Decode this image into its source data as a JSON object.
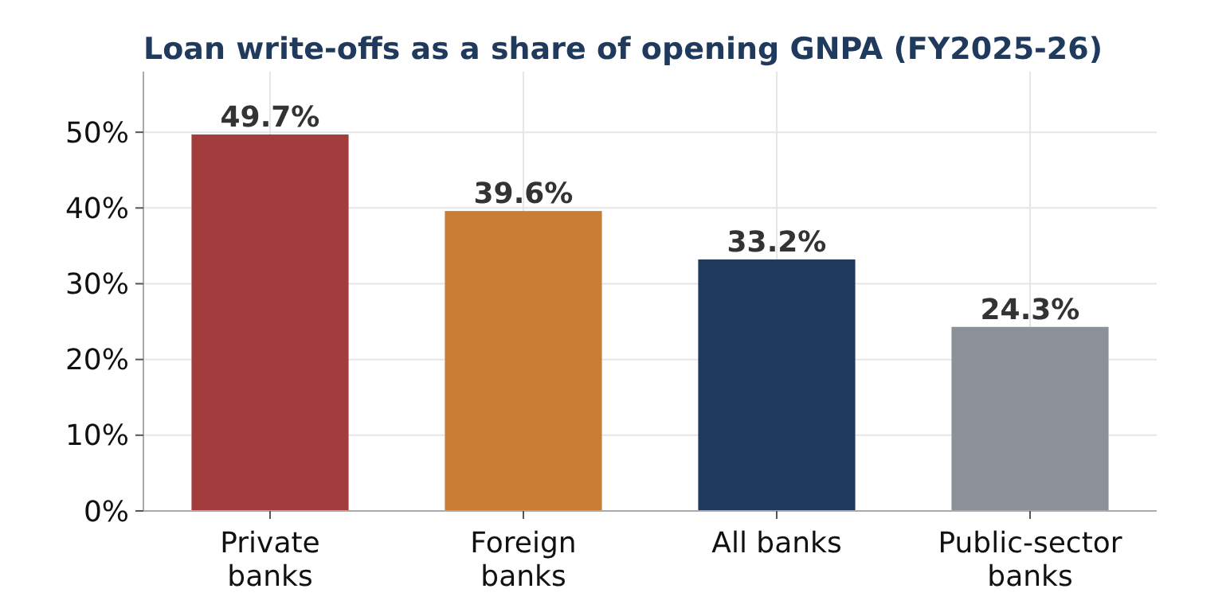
{
  "chart_data": {
    "type": "bar",
    "title": "Loan write-offs as a share of opening GNPA (FY2025-26)",
    "categories": [
      "Private\nbanks",
      "Foreign\nbanks",
      "All banks",
      "Public-sector\nbanks"
    ],
    "values": [
      49.7,
      39.6,
      33.2,
      24.3
    ],
    "colors": [
      "#a33d3d",
      "#c87e35",
      "#1f3a5d",
      "#8b9099"
    ],
    "value_labels": [
      "49.7%",
      "39.6%",
      "33.2%",
      "24.3%"
    ],
    "ylim": [
      0,
      58
    ],
    "yticks": [
      {
        "value": 0,
        "label": "0%"
      },
      {
        "value": 10,
        "label": "10%"
      },
      {
        "value": 20,
        "label": "20%"
      },
      {
        "value": 30,
        "label": "30%"
      },
      {
        "value": 40,
        "label": "40%"
      },
      {
        "value": 50,
        "label": "50%"
      }
    ],
    "grid": true
  }
}
